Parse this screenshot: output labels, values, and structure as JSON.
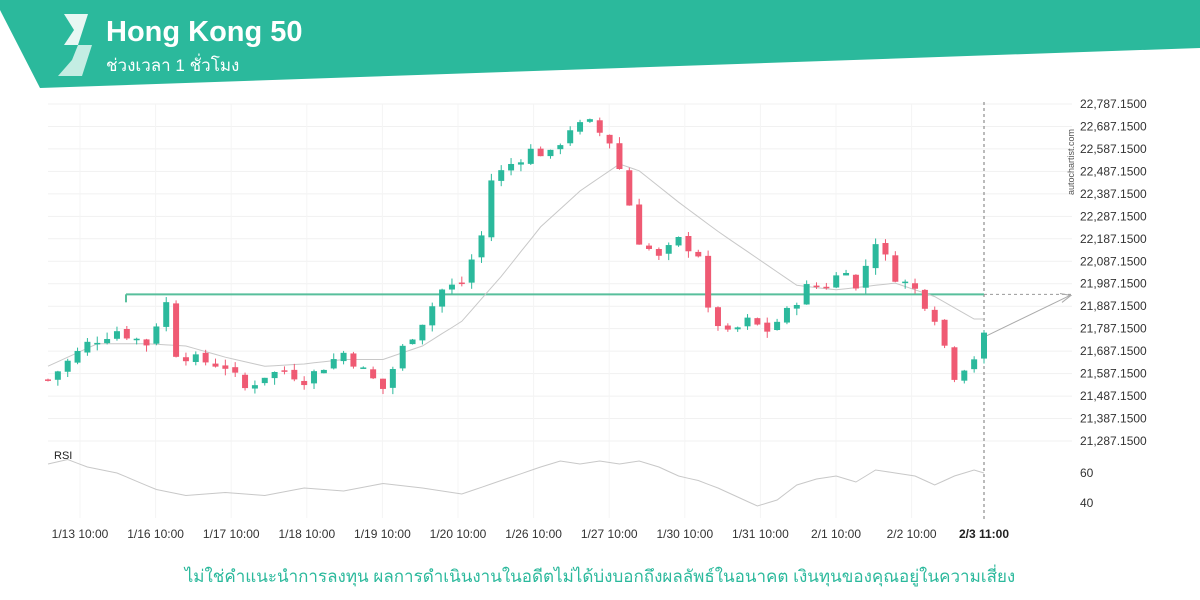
{
  "header": {
    "title": "Hong Kong 50",
    "subtitle": "ช่วงเวลา 1 ชั่วโมง"
  },
  "watermark": "autochartist.com",
  "disclaimer": "ไม่ใช่คำแนะนำการลงทุน ผลการดำเนินงานในอดีตไม่ได้บ่งบอกถึงผลลัพธ์ในอนาคต เงินทุนของคุณอยู่ในความเสี่ยง",
  "colors": {
    "brand": "#2bb99c",
    "up": "#2bb99c",
    "down": "#ef5a73",
    "level": "#58bf9c",
    "ma": "#c8c8c8",
    "rsi": "#c8c8c8"
  },
  "chart_data": [
    {
      "type": "candlestick",
      "x_ticks": [
        "1/13 10:00",
        "1/16 10:00",
        "1/17 10:00",
        "1/18 10:00",
        "1/19 10:00",
        "1/20 10:00",
        "1/26 10:00",
        "1/27 10:00",
        "1/30 10:00",
        "1/31 10:00",
        "2/1 10:00",
        "2/2 10:00"
      ],
      "current_x_label": "2/3 11:00",
      "y_ticks": [
        "22,787.1500",
        "22,687.1500",
        "22,587.1500",
        "22,487.1500",
        "22,387.1500",
        "22,287.1500",
        "22,187.1500",
        "22,087.1500",
        "21,987.1500",
        "21,887.1500",
        "21,787.1500",
        "21,687.1500",
        "21,587.1500",
        "21,487.1500",
        "21,387.1500",
        "21,287.1500"
      ],
      "ylim": [
        21287.15,
        22787.15
      ],
      "horizontal_level": 21940,
      "projection_target": 21935,
      "close_path": [
        [
          0,
          21560
        ],
        [
          4,
          21720
        ],
        [
          7,
          21780
        ],
        [
          10,
          21720
        ],
        [
          12,
          21900
        ],
        [
          13,
          21680
        ],
        [
          15,
          21650
        ],
        [
          18,
          21620
        ],
        [
          20,
          21520
        ],
        [
          22,
          21580
        ],
        [
          24,
          21600
        ],
        [
          26,
          21560
        ],
        [
          28,
          21620
        ],
        [
          30,
          21680
        ],
        [
          32,
          21600
        ],
        [
          34,
          21520
        ],
        [
          36,
          21700
        ],
        [
          38,
          21820
        ],
        [
          40,
          21960
        ],
        [
          42,
          21990
        ],
        [
          44,
          22200
        ],
        [
          45,
          22450
        ],
        [
          47,
          22520
        ],
        [
          49,
          22580
        ],
        [
          51,
          22560
        ],
        [
          53,
          22680
        ],
        [
          55,
          22700
        ],
        [
          57,
          22620
        ],
        [
          58,
          22500
        ],
        [
          60,
          22180
        ],
        [
          62,
          22100
        ],
        [
          64,
          22180
        ],
        [
          66,
          22120
        ],
        [
          67,
          21860
        ],
        [
          69,
          21760
        ],
        [
          71,
          21820
        ],
        [
          73,
          21780
        ],
        [
          75,
          21860
        ],
        [
          77,
          21970
        ],
        [
          79,
          21980
        ],
        [
          81,
          22060
        ],
        [
          82,
          21960
        ],
        [
          84,
          22180
        ],
        [
          86,
          22020
        ],
        [
          88,
          21960
        ],
        [
          90,
          21840
        ],
        [
          92,
          21580
        ],
        [
          94,
          21660
        ],
        [
          95,
          21750
        ]
      ],
      "ma_path": [
        [
          0,
          21620
        ],
        [
          5,
          21720
        ],
        [
          10,
          21720
        ],
        [
          14,
          21710
        ],
        [
          18,
          21660
        ],
        [
          22,
          21620
        ],
        [
          26,
          21630
        ],
        [
          30,
          21650
        ],
        [
          34,
          21650
        ],
        [
          38,
          21710
        ],
        [
          42,
          21820
        ],
        [
          46,
          22020
        ],
        [
          50,
          22240
        ],
        [
          54,
          22400
        ],
        [
          58,
          22520
        ],
        [
          60,
          22490
        ],
        [
          64,
          22350
        ],
        [
          68,
          22220
        ],
        [
          72,
          22100
        ],
        [
          76,
          21980
        ],
        [
          80,
          21960
        ],
        [
          86,
          21990
        ],
        [
          90,
          21930
        ],
        [
          94,
          21830
        ]
      ],
      "rsi_label": "RSI",
      "rsi_ticks": [
        "60",
        "40"
      ],
      "rsi_ylim": [
        30,
        75
      ],
      "rsi_path": [
        [
          0,
          66
        ],
        [
          2,
          69
        ],
        [
          4,
          64
        ],
        [
          7,
          60
        ],
        [
          11,
          49
        ],
        [
          14,
          45
        ],
        [
          18,
          47
        ],
        [
          22,
          45
        ],
        [
          26,
          50
        ],
        [
          30,
          48
        ],
        [
          34,
          53
        ],
        [
          38,
          50
        ],
        [
          42,
          46
        ],
        [
          46,
          55
        ],
        [
          50,
          64
        ],
        [
          52,
          68
        ],
        [
          54,
          66
        ],
        [
          56,
          68
        ],
        [
          58,
          66
        ],
        [
          60,
          68
        ],
        [
          62,
          64
        ],
        [
          64,
          58
        ],
        [
          66,
          55
        ],
        [
          68,
          50
        ],
        [
          70,
          44
        ],
        [
          72,
          38
        ],
        [
          74,
          42
        ],
        [
          76,
          52
        ],
        [
          78,
          56
        ],
        [
          80,
          58
        ],
        [
          82,
          54
        ],
        [
          84,
          62
        ],
        [
          86,
          60
        ],
        [
          88,
          58
        ],
        [
          90,
          52
        ],
        [
          92,
          58
        ],
        [
          94,
          62
        ],
        [
          95,
          60
        ]
      ]
    }
  ]
}
